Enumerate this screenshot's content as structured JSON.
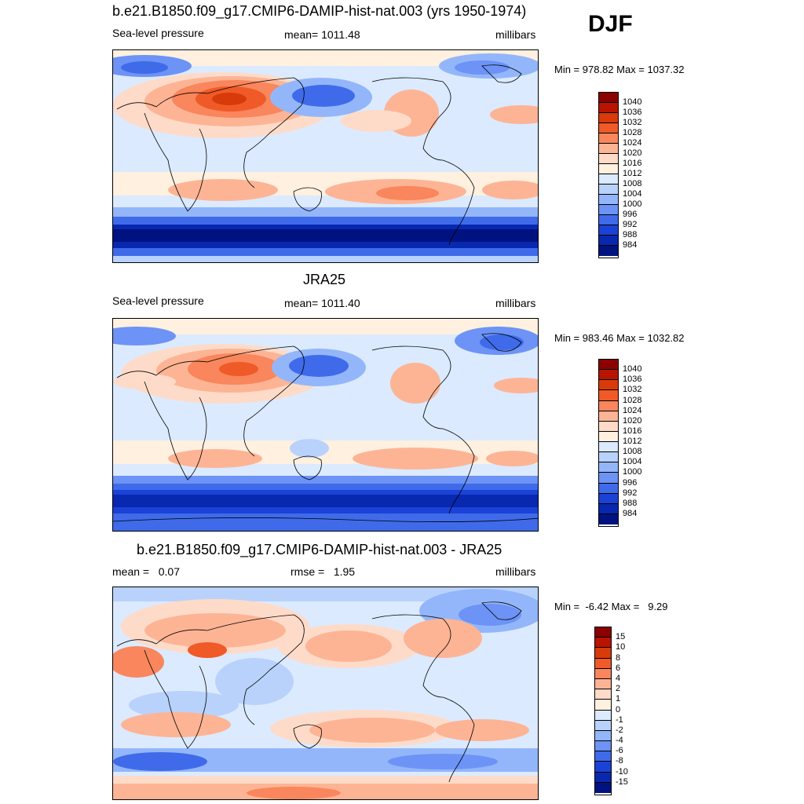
{
  "season": "DJF",
  "panels": [
    {
      "id": "model",
      "title": "b.e21.B1850.f09_g17.CMIP6-DAMIP-hist-nat.003 (yrs 1950-1974)",
      "left_label": "Sea-level pressure",
      "center_label": "mean= 1011.48",
      "right_label": "millibars",
      "minmax": "Min = 978.82 Max = 1037.32",
      "colorbar": {
        "colors": [
          "#8b0000",
          "#b81400",
          "#d93a0a",
          "#ef5a28",
          "#f9865c",
          "#fdb495",
          "#fedbc8",
          "#fff0e0",
          "#dbeafe",
          "#b8d2fc",
          "#93b6fa",
          "#6c93f5",
          "#3f6bea",
          "#1b42d6",
          "#0828b0",
          "#001280"
        ],
        "labels": [
          "1040",
          "1036",
          "1032",
          "1028",
          "1024",
          "1020",
          "1016",
          "1012",
          "1008",
          "1004",
          "1000",
          "996",
          "992",
          "988",
          "984"
        ]
      }
    },
    {
      "id": "obs",
      "title": "JRA25",
      "left_label": "Sea-level pressure",
      "center_label": "mean= 1011.40",
      "right_label": "millibars",
      "minmax": "Min = 983.46 Max = 1032.82",
      "colorbar": {
        "colors": [
          "#8b0000",
          "#b81400",
          "#d93a0a",
          "#ef5a28",
          "#f9865c",
          "#fdb495",
          "#fedbc8",
          "#fff0e0",
          "#dbeafe",
          "#b8d2fc",
          "#93b6fa",
          "#6c93f5",
          "#3f6bea",
          "#1b42d6",
          "#0828b0",
          "#001280"
        ],
        "labels": [
          "1040",
          "1036",
          "1032",
          "1028",
          "1024",
          "1020",
          "1016",
          "1012",
          "1008",
          "1004",
          "1000",
          "996",
          "992",
          "988",
          "984"
        ]
      }
    },
    {
      "id": "diff",
      "title": "b.e21.B1850.f09_g17.CMIP6-DAMIP-hist-nat.003 - JRA25",
      "left_label": "mean =   0.07",
      "center_label": "rmse =   1.95",
      "right_label": "millibars",
      "minmax": "Min =  -6.42 Max =   9.29",
      "colorbar": {
        "colors": [
          "#8b0000",
          "#b81400",
          "#d93a0a",
          "#ef5a28",
          "#f9865c",
          "#fdb495",
          "#fedbc8",
          "#fff0e0",
          "#dbeafe",
          "#b8d2fc",
          "#93b6fa",
          "#6c93f5",
          "#3f6bea",
          "#1b42d6",
          "#0828b0",
          "#001280"
        ],
        "labels": [
          "15",
          "10",
          "8",
          "6",
          "4",
          "2",
          "1",
          "0",
          "-1",
          "-2",
          "-4",
          "-6",
          "-8",
          "-10",
          "-15"
        ]
      }
    }
  ]
}
